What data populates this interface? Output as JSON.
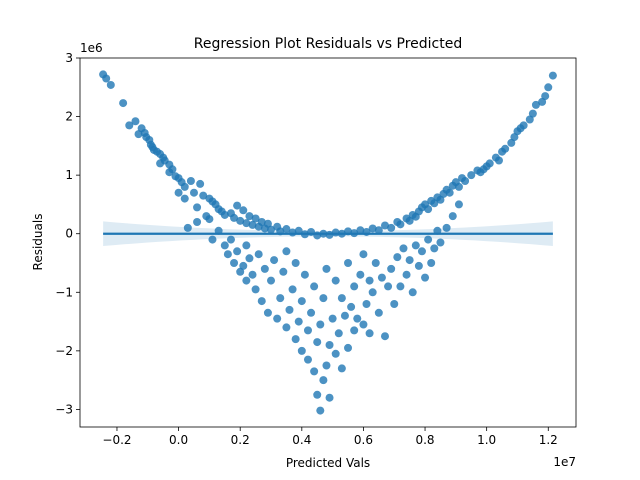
{
  "chart_data": {
    "type": "scatter",
    "title": "Regression Plot Residuals vs Predicted",
    "xlabel": "Predicted Vals",
    "ylabel": "Residuals",
    "x_offset_text": "1e7",
    "y_offset_text": "1e6",
    "xlim": [
      -3200000,
      12900000
    ],
    "ylim": [
      -3300000,
      3000000
    ],
    "x_ticks": [
      -2000000,
      0,
      2000000,
      4000000,
      6000000,
      8000000,
      10000000,
      12000000
    ],
    "x_tick_labels": [
      "−0.2",
      "0.0",
      "0.2",
      "0.4",
      "0.6",
      "0.8",
      "1.0",
      "1.2"
    ],
    "y_ticks": [
      -3000000,
      -2000000,
      -1000000,
      0,
      1000000,
      2000000,
      3000000
    ],
    "y_tick_labels": [
      "−3",
      "−2",
      "−1",
      "0",
      "1",
      "2",
      "3"
    ],
    "grid": false,
    "legend": "none",
    "colors": {
      "points": "#1f77b4",
      "line": "#1f77b4",
      "band": "#1f77b4"
    },
    "series": [
      {
        "kind": "scatter",
        "points": [
          [
            -2450000,
            2720000
          ],
          [
            -2350000,
            2650000
          ],
          [
            -2200000,
            2540000
          ],
          [
            -1800000,
            2230000
          ],
          [
            -1400000,
            1920000
          ],
          [
            -1200000,
            1800000
          ],
          [
            -1100000,
            1720000
          ],
          [
            -1050000,
            1650000
          ],
          [
            -950000,
            1600000
          ],
          [
            -900000,
            1520000
          ],
          [
            -850000,
            1480000
          ],
          [
            -800000,
            1430000
          ],
          [
            -700000,
            1400000
          ],
          [
            -600000,
            1360000
          ],
          [
            -500000,
            1300000
          ],
          [
            -450000,
            1250000
          ],
          [
            -300000,
            1180000
          ],
          [
            -200000,
            1100000
          ],
          [
            -100000,
            980000
          ],
          [
            0,
            950000
          ],
          [
            100000,
            880000
          ],
          [
            200000,
            800000
          ],
          [
            400000,
            900000
          ],
          [
            500000,
            700000
          ],
          [
            700000,
            850000
          ],
          [
            800000,
            650000
          ],
          [
            1000000,
            600000
          ],
          [
            1100000,
            550000
          ],
          [
            1200000,
            500000
          ],
          [
            1300000,
            420000
          ],
          [
            1400000,
            380000
          ],
          [
            1500000,
            320000
          ],
          [
            1700000,
            350000
          ],
          [
            1800000,
            270000
          ],
          [
            1900000,
            480000
          ],
          [
            2000000,
            220000
          ],
          [
            2100000,
            400000
          ],
          [
            2200000,
            180000
          ],
          [
            2300000,
            300000
          ],
          [
            2400000,
            150000
          ],
          [
            2500000,
            260000
          ],
          [
            2600000,
            120000
          ],
          [
            2700000,
            200000
          ],
          [
            2800000,
            90000
          ],
          [
            2900000,
            170000
          ],
          [
            3000000,
            70000
          ],
          [
            3200000,
            120000
          ],
          [
            3300000,
            40000
          ],
          [
            3500000,
            80000
          ],
          [
            3700000,
            20000
          ],
          [
            3900000,
            50000
          ],
          [
            4100000,
            -10000
          ],
          [
            4300000,
            30000
          ],
          [
            4500000,
            -30000
          ],
          [
            4700000,
            0
          ],
          [
            4900000,
            -20000
          ],
          [
            5100000,
            20000
          ],
          [
            5300000,
            0
          ],
          [
            5500000,
            40000
          ],
          [
            5700000,
            10000
          ],
          [
            5900000,
            60000
          ],
          [
            6100000,
            30000
          ],
          [
            6300000,
            90000
          ],
          [
            6500000,
            60000
          ],
          [
            6700000,
            140000
          ],
          [
            6900000,
            100000
          ],
          [
            7100000,
            200000
          ],
          [
            7200000,
            160000
          ],
          [
            7400000,
            260000
          ],
          [
            7500000,
            220000
          ],
          [
            7600000,
            320000
          ],
          [
            7700000,
            290000
          ],
          [
            7800000,
            380000
          ],
          [
            7900000,
            450000
          ],
          [
            8000000,
            500000
          ],
          [
            8100000,
            420000
          ],
          [
            8200000,
            560000
          ],
          [
            8300000,
            520000
          ],
          [
            8400000,
            620000
          ],
          [
            8500000,
            580000
          ],
          [
            8600000,
            680000
          ],
          [
            8700000,
            750000
          ],
          [
            8800000,
            700000
          ],
          [
            8900000,
            820000
          ],
          [
            9000000,
            880000
          ],
          [
            9100000,
            800000
          ],
          [
            9200000,
            950000
          ],
          [
            9300000,
            900000
          ],
          [
            9500000,
            1000000
          ],
          [
            9700000,
            1080000
          ],
          [
            9800000,
            1050000
          ],
          [
            10000000,
            1150000
          ],
          [
            10100000,
            1200000
          ],
          [
            10300000,
            1300000
          ],
          [
            10400000,
            1250000
          ],
          [
            10600000,
            1450000
          ],
          [
            10800000,
            1550000
          ],
          [
            10900000,
            1650000
          ],
          [
            11000000,
            1750000
          ],
          [
            11200000,
            1850000
          ],
          [
            11400000,
            1950000
          ],
          [
            11600000,
            2200000
          ],
          [
            11800000,
            2250000
          ],
          [
            11900000,
            2350000
          ],
          [
            12000000,
            2500000
          ],
          [
            12150000,
            2700000
          ],
          [
            300000,
            100000
          ],
          [
            600000,
            200000
          ],
          [
            900000,
            300000
          ],
          [
            1100000,
            -100000
          ],
          [
            1300000,
            50000
          ],
          [
            1500000,
            -200000
          ],
          [
            1600000,
            -350000
          ],
          [
            1700000,
            -100000
          ],
          [
            1800000,
            -500000
          ],
          [
            1900000,
            -300000
          ],
          [
            2000000,
            -650000
          ],
          [
            2100000,
            -550000
          ],
          [
            2200000,
            -800000
          ],
          [
            2200000,
            -200000
          ],
          [
            2300000,
            -420000
          ],
          [
            2400000,
            -700000
          ],
          [
            2500000,
            -950000
          ],
          [
            2600000,
            -350000
          ],
          [
            2700000,
            -1150000
          ],
          [
            2800000,
            -600000
          ],
          [
            2900000,
            -1350000
          ],
          [
            3000000,
            -800000
          ],
          [
            3100000,
            -450000
          ],
          [
            3200000,
            -1450000
          ],
          [
            3300000,
            -1100000
          ],
          [
            3400000,
            -650000
          ],
          [
            3500000,
            -1600000
          ],
          [
            3500000,
            -300000
          ],
          [
            3600000,
            -1300000
          ],
          [
            3700000,
            -950000
          ],
          [
            3800000,
            -1800000
          ],
          [
            3800000,
            -500000
          ],
          [
            3900000,
            -1500000
          ],
          [
            4000000,
            -1150000
          ],
          [
            4000000,
            -2000000
          ],
          [
            4100000,
            -700000
          ],
          [
            4200000,
            -1650000
          ],
          [
            4200000,
            -2150000
          ],
          [
            4300000,
            -1350000
          ],
          [
            4400000,
            -900000
          ],
          [
            4400000,
            -2350000
          ],
          [
            4500000,
            -1850000
          ],
          [
            4500000,
            -2750000
          ],
          [
            4600000,
            -1550000
          ],
          [
            4600000,
            -3020000
          ],
          [
            4700000,
            -2500000
          ],
          [
            4700000,
            -1100000
          ],
          [
            4800000,
            -2250000
          ],
          [
            4800000,
            -600000
          ],
          [
            4900000,
            -1900000
          ],
          [
            4900000,
            -2800000
          ],
          [
            5000000,
            -1450000
          ],
          [
            5100000,
            -2050000
          ],
          [
            5100000,
            -800000
          ],
          [
            5200000,
            -1700000
          ],
          [
            5300000,
            -2300000
          ],
          [
            5300000,
            -1100000
          ],
          [
            5400000,
            -1400000
          ],
          [
            5500000,
            -1950000
          ],
          [
            5500000,
            -500000
          ],
          [
            5600000,
            -1250000
          ],
          [
            5700000,
            -1650000
          ],
          [
            5700000,
            -900000
          ],
          [
            5800000,
            -1450000
          ],
          [
            5900000,
            -700000
          ],
          [
            6000000,
            -1550000
          ],
          [
            6000000,
            -350000
          ],
          [
            6100000,
            -1200000
          ],
          [
            6200000,
            -800000
          ],
          [
            6200000,
            -1700000
          ],
          [
            6300000,
            -1000000
          ],
          [
            6400000,
            -500000
          ],
          [
            6500000,
            -1350000
          ],
          [
            6600000,
            -750000
          ],
          [
            6700000,
            -1750000
          ],
          [
            6800000,
            -900000
          ],
          [
            6900000,
            -600000
          ],
          [
            7000000,
            -1200000
          ],
          [
            7100000,
            -400000
          ],
          [
            7200000,
            -900000
          ],
          [
            7300000,
            -250000
          ],
          [
            7400000,
            -700000
          ],
          [
            7500000,
            -450000
          ],
          [
            7600000,
            -1000000
          ],
          [
            7700000,
            -200000
          ],
          [
            7800000,
            -550000
          ],
          [
            7900000,
            -300000
          ],
          [
            8000000,
            -750000
          ],
          [
            8100000,
            -100000
          ],
          [
            8200000,
            -500000
          ],
          [
            8300000,
            -250000
          ],
          [
            8400000,
            50000
          ],
          [
            8500000,
            -150000
          ],
          [
            8700000,
            100000
          ],
          [
            8900000,
            300000
          ],
          [
            9100000,
            500000
          ],
          [
            -1600000,
            1850000
          ],
          [
            -1300000,
            1700000
          ],
          [
            -600000,
            1200000
          ],
          [
            -300000,
            1050000
          ],
          [
            0,
            700000
          ],
          [
            200000,
            600000
          ],
          [
            600000,
            450000
          ],
          [
            1000000,
            250000
          ],
          [
            10500000,
            1400000
          ],
          [
            11100000,
            1800000
          ],
          [
            11500000,
            2050000
          ],
          [
            9900000,
            1100000
          ]
        ]
      },
      {
        "kind": "regression_line",
        "x": [
          -2450000,
          12150000
        ],
        "y": [
          0,
          0
        ],
        "ci_half_width_at_ends": 210000,
        "ci_half_width_at_center": 45000
      }
    ]
  }
}
